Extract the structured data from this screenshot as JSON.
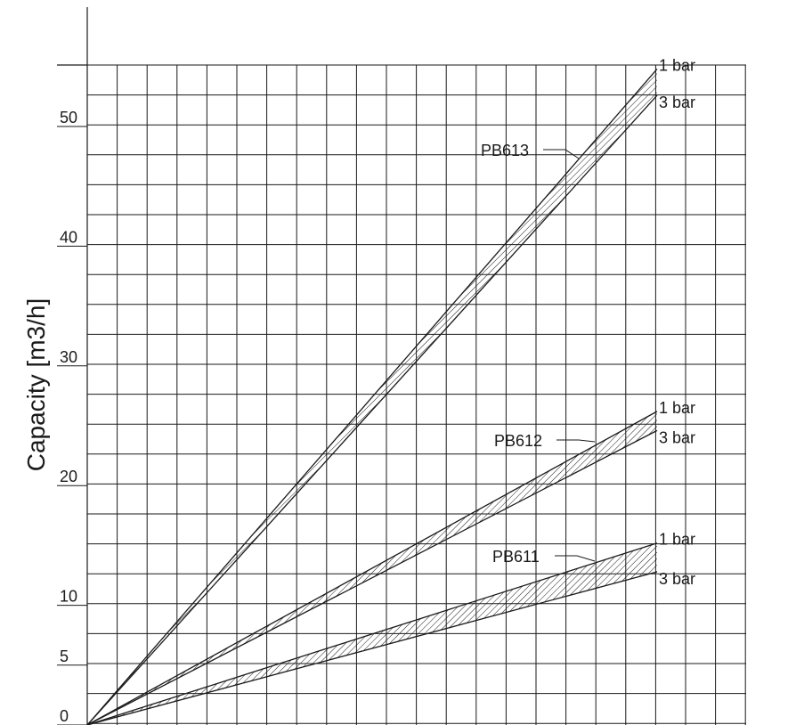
{
  "chart_data": {
    "type": "line",
    "ylabel": "Capacity [m3/h]",
    "xlabel": "",
    "ylim": [
      0,
      55
    ],
    "yticks": [
      0,
      5,
      10,
      20,
      30,
      40,
      50
    ],
    "grid": true,
    "series": [
      {
        "name": "PB613",
        "upper_label": "1 bar",
        "lower_label": "3 bar",
        "end_upper": 54.8,
        "end_lower": 52.6
      },
      {
        "name": "PB612",
        "upper_label": "1 bar",
        "lower_label": "3 bar",
        "end_upper": 26.2,
        "end_lower": 24.6
      },
      {
        "name": "PB611",
        "upper_label": "1 bar",
        "lower_label": "3 bar",
        "end_upper": 15.2,
        "end_lower": 12.8
      }
    ],
    "colors": {
      "line": "#1a1a1a",
      "grid": "#1a1a1a",
      "background": "#ffffff"
    }
  }
}
